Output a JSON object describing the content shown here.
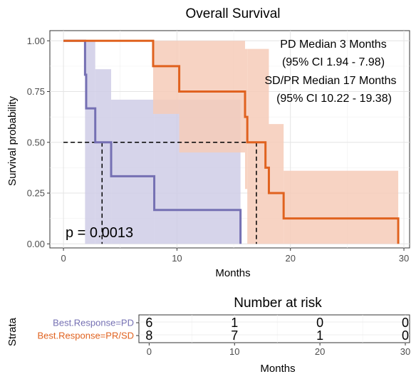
{
  "chart_data": [
    {
      "type": "line",
      "title": "Overall Survival",
      "xlabel": "Months",
      "ylabel": "Survival probability",
      "xlim": [
        -1.2,
        30.5
      ],
      "ylim": [
        -0.02,
        1.05
      ],
      "xticks": [
        0,
        10,
        20,
        30
      ],
      "xtick_labels": [
        "0",
        "10",
        "20",
        "30"
      ],
      "yticks": [
        0,
        0.25,
        0.5,
        0.75,
        1.0
      ],
      "ytick_labels": [
        "0.00",
        "0.25",
        "0.50",
        "0.75",
        "1.00"
      ],
      "grid": true,
      "series": [
        {
          "name": "Best.Response=PD",
          "color": "#7570b3",
          "band_color": "#cfcce6",
          "steps": [
            [
              0,
              1.0
            ],
            [
              1.9,
              0.833
            ],
            [
              2.0,
              0.667
            ],
            [
              2.8,
              0.5
            ],
            [
              4.2,
              0.333
            ],
            [
              8.0,
              0.167
            ],
            [
              15.6,
              0.0
            ]
          ],
          "ci_steps": [
            [
              1.9,
              0.0,
              1.0
            ],
            [
              2.8,
              0.0,
              0.86
            ],
            [
              4.2,
              0.0,
              0.71
            ],
            [
              8.0,
              0.0,
              0.71
            ],
            [
              15.6,
              0.0,
              0.58
            ]
          ],
          "ci_end": 15.6
        },
        {
          "name": "Best.Response=PR/SD",
          "color": "#e0621f",
          "band_color": "#f6cbb8",
          "steps": [
            [
              0,
              1.0
            ],
            [
              7.9,
              0.875
            ],
            [
              10.2,
              0.75
            ],
            [
              16.0,
              0.625
            ],
            [
              16.2,
              0.5
            ],
            [
              17.8,
              0.375
            ],
            [
              18.1,
              0.25
            ],
            [
              19.4,
              0.125
            ],
            [
              29.5,
              0.0
            ]
          ],
          "ci_steps": [
            [
              7.9,
              0.64,
              1.0
            ],
            [
              10.2,
              0.45,
              1.0
            ],
            [
              16.0,
              0.27,
              0.96
            ],
            [
              16.2,
              0.0,
              0.96
            ],
            [
              18.1,
              0.0,
              0.59
            ],
            [
              19.4,
              0.0,
              0.36
            ]
          ],
          "ci_end": 29.5
        }
      ],
      "medians": [
        3.4,
        17.0
      ],
      "annotations": {
        "pd_median": "PD Median 3 Months",
        "pd_ci": "(95% CI 1.94 - 7.98)",
        "sd_median": "SD/PR Median 17 Months",
        "sd_ci": "(95% CI 10.22 - 19.38)",
        "pvalue": "p = 0.0013"
      }
    },
    {
      "type": "table",
      "title": "Number at risk",
      "xlabel": "Months",
      "ylabel": "Strata",
      "xticks": [
        0,
        10,
        20,
        30
      ],
      "xtick_labels": [
        "0",
        "10",
        "20",
        "30"
      ],
      "rows": [
        {
          "label": "Best.Response=PD",
          "color": "#7570b3",
          "values": [
            6,
            1,
            0,
            0
          ]
        },
        {
          "label": "Best.Response=PR/SD",
          "color": "#e0621f",
          "values": [
            8,
            7,
            1,
            0
          ]
        }
      ]
    }
  ]
}
